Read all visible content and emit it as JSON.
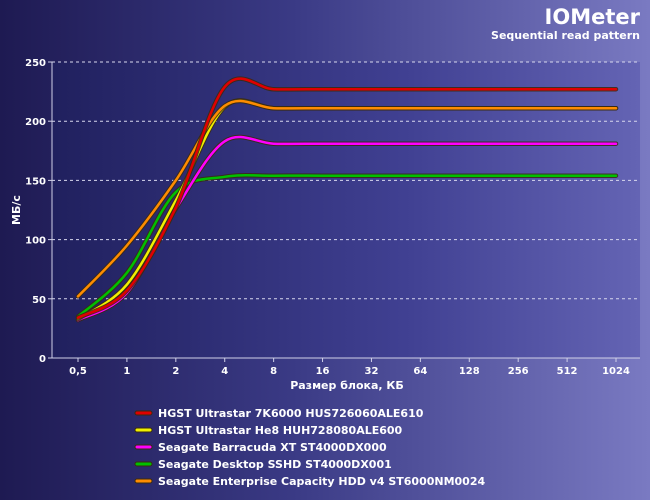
{
  "header": {
    "title": "IOMeter",
    "subtitle": "Sequential read pattern"
  },
  "chart_data": {
    "type": "line",
    "title": "IOMeter",
    "subtitle": "Sequential read pattern",
    "xlabel": "Размер блока, КБ",
    "ylabel": "МБ/с",
    "categories": [
      "0,5",
      "1",
      "2",
      "4",
      "8",
      "16",
      "32",
      "64",
      "128",
      "256",
      "512",
      "1024"
    ],
    "ylim": [
      0,
      250
    ],
    "yticks": [
      0,
      50,
      100,
      150,
      200,
      250
    ],
    "grid": true,
    "legend_position": "bottom",
    "series": [
      {
        "name": "HGST Ultrastar 7K6000 HUS726060ALE610",
        "color": "#e00000",
        "values": [
          34,
          57,
          127,
          229,
          227,
          227,
          227,
          227,
          227,
          227,
          227,
          227
        ]
      },
      {
        "name": "HGST Ultrastar He8 HUH728080ALE600",
        "color": "#f0f000",
        "values": [
          33,
          62,
          133,
          212,
          211,
          211,
          211,
          211,
          211,
          211,
          211,
          211
        ]
      },
      {
        "name": "Seagate Barracuda XT ST4000DX000",
        "color": "#ff00ff",
        "values": [
          32,
          55,
          126,
          183,
          181,
          181,
          181,
          181,
          181,
          181,
          181,
          181
        ]
      },
      {
        "name": "Seagate Desktop SSHD ST4000DX001",
        "color": "#00c000",
        "values": [
          35,
          72,
          140,
          153,
          154,
          154,
          154,
          154,
          154,
          154,
          154,
          154
        ]
      },
      {
        "name": "Seagate Enterprise Capacity HDD v4 ST6000NM0024",
        "color": "#ff8c00",
        "values": [
          52,
          95,
          150,
          213,
          211,
          211,
          211,
          211,
          211,
          211,
          211,
          211
        ]
      }
    ]
  }
}
